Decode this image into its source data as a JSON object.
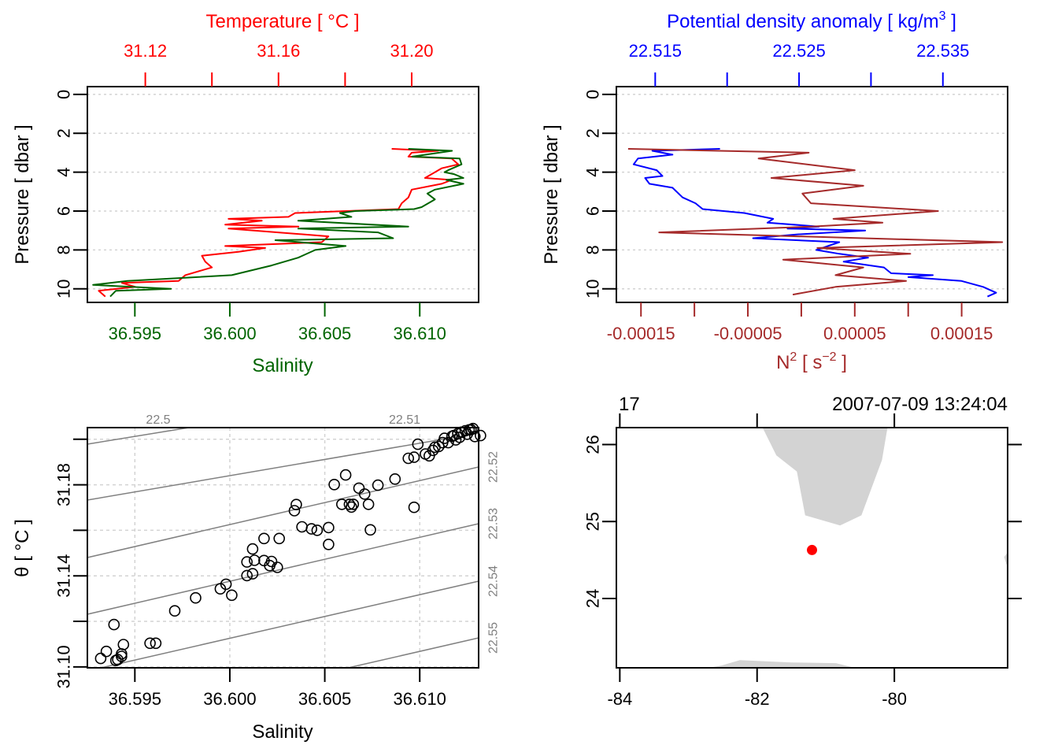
{
  "chart_data": [
    {
      "id": "ts_profile",
      "type": "line",
      "title": "",
      "ylabel": "Pressure [ dbar ]",
      "ylim": [
        10.7,
        -0.4
      ],
      "yticks": [
        0,
        2,
        4,
        6,
        8,
        10
      ],
      "grid": true,
      "bottom_axis": {
        "label": "Salinity",
        "color": "#006400",
        "range": [
          36.5925,
          36.6131
        ],
        "ticks": [
          36.595,
          36.6,
          36.605,
          36.61
        ],
        "tick_labels": [
          "36.595",
          "36.600",
          "36.605",
          "36.610"
        ]
      },
      "top_axis": {
        "label": "Temperature [ °C ]",
        "color": "#ff0000",
        "range": [
          31.1026,
          31.2201
        ],
        "ticks": [
          31.12,
          31.14,
          31.16,
          31.18,
          31.2
        ],
        "tick_labels": [
          "31.12",
          "",
          "31.16",
          "",
          "31.20"
        ]
      },
      "series": [
        {
          "name": "Temperature",
          "axis": "top",
          "color": "#ff0000",
          "points": [
            [
              31.194,
              2.8
            ],
            [
              31.208,
              2.9
            ],
            [
              31.2,
              3.0
            ],
            [
              31.199,
              3.2
            ],
            [
              31.212,
              3.3
            ],
            [
              31.214,
              3.6
            ],
            [
              31.209,
              3.8
            ],
            [
              31.207,
              4.0
            ],
            [
              31.204,
              4.3
            ],
            [
              31.212,
              4.4
            ],
            [
              31.209,
              4.6
            ],
            [
              31.2,
              4.9
            ],
            [
              31.199,
              5.3
            ],
            [
              31.197,
              5.6
            ],
            [
              31.196,
              5.9
            ],
            [
              31.165,
              6.1
            ],
            [
              31.163,
              6.3
            ],
            [
              31.145,
              6.4
            ],
            [
              31.155,
              6.5
            ],
            [
              31.144,
              6.7
            ],
            [
              31.166,
              6.8
            ],
            [
              31.145,
              6.9
            ],
            [
              31.175,
              7.3
            ],
            [
              31.173,
              7.6
            ],
            [
              31.144,
              7.8
            ],
            [
              31.156,
              7.9
            ],
            [
              31.148,
              8.1
            ],
            [
              31.137,
              8.3
            ],
            [
              31.138,
              8.6
            ],
            [
              31.14,
              8.9
            ],
            [
              31.132,
              9.3
            ],
            [
              31.13,
              9.6
            ],
            [
              31.113,
              9.7
            ],
            [
              31.117,
              9.9
            ],
            [
              31.106,
              10.1
            ],
            [
              31.108,
              10.4
            ]
          ]
        },
        {
          "name": "Salinity",
          "axis": "bottom",
          "color": "#006400",
          "points": [
            [
              36.6094,
              2.8
            ],
            [
              36.6117,
              2.9
            ],
            [
              36.6096,
              3.2
            ],
            [
              36.6121,
              3.3
            ],
            [
              36.6122,
              3.6
            ],
            [
              36.6115,
              3.9
            ],
            [
              36.6113,
              4.0
            ],
            [
              36.6118,
              4.1
            ],
            [
              36.6123,
              4.3
            ],
            [
              36.6114,
              4.4
            ],
            [
              36.6123,
              4.6
            ],
            [
              36.6108,
              4.9
            ],
            [
              36.6104,
              5.1
            ],
            [
              36.6108,
              5.4
            ],
            [
              36.6101,
              5.8
            ],
            [
              36.6097,
              5.9
            ],
            [
              36.6066,
              6.0
            ],
            [
              36.6058,
              6.1
            ],
            [
              36.6064,
              6.3
            ],
            [
              36.6036,
              6.5
            ],
            [
              36.6094,
              6.8
            ],
            [
              36.6036,
              6.9
            ],
            [
              36.6078,
              7.1
            ],
            [
              36.6086,
              7.4
            ],
            [
              36.6024,
              7.5
            ],
            [
              36.6061,
              7.8
            ],
            [
              36.6045,
              8.0
            ],
            [
              36.6036,
              8.4
            ],
            [
              36.6022,
              8.8
            ],
            [
              36.6001,
              9.3
            ],
            [
              36.5946,
              9.6
            ],
            [
              36.5928,
              9.8
            ],
            [
              36.5969,
              10.0
            ],
            [
              36.594,
              10.1
            ],
            [
              36.5937,
              10.4
            ]
          ]
        }
      ]
    },
    {
      "id": "density_profile",
      "type": "line",
      "title": "",
      "ylabel": "Pressure [ dbar ]",
      "ylim": [
        10.7,
        -0.4
      ],
      "yticks": [
        0,
        2,
        4,
        6,
        8,
        10
      ],
      "grid": true,
      "bottom_axis": {
        "label": "N² [ s⁻² ]",
        "label_base": "N",
        "label_unit_base": "s",
        "color": "#a52a2a",
        "range": [
          -0.000173,
          0.000193
        ],
        "ticks": [
          -0.00015,
          -0.0001,
          -5e-05,
          0,
          5e-05,
          0.0001,
          0.00015
        ],
        "tick_labels": [
          "-0.00015",
          "",
          "-0.00005",
          "",
          "0.00005",
          "",
          "0.00015"
        ]
      },
      "top_axis": {
        "label": "Potential density anomaly [ kg/m³ ]",
        "color": "#0000ff",
        "range": [
          22.5123,
          22.5395
        ],
        "ticks": [
          22.515,
          22.52,
          22.525,
          22.53,
          22.535
        ],
        "tick_labels": [
          "22.515",
          "",
          "22.525",
          "",
          "22.535"
        ]
      },
      "series": [
        {
          "name": "Potential density anomaly",
          "axis": "top",
          "color": "#0000ff",
          "points": [
            [
              22.5195,
              2.8
            ],
            [
              22.5148,
              2.9
            ],
            [
              22.5162,
              3.1
            ],
            [
              22.5138,
              3.3
            ],
            [
              22.5135,
              3.6
            ],
            [
              22.5151,
              3.9
            ],
            [
              22.5155,
              4.2
            ],
            [
              22.5143,
              4.3
            ],
            [
              22.5146,
              4.6
            ],
            [
              22.5162,
              4.8
            ],
            [
              22.5169,
              5.3
            ],
            [
              22.5178,
              5.6
            ],
            [
              22.5183,
              5.9
            ],
            [
              22.5212,
              6.1
            ],
            [
              22.5232,
              6.4
            ],
            [
              22.5228,
              6.6
            ],
            [
              22.5264,
              6.8
            ],
            [
              22.5242,
              6.9
            ],
            [
              22.5296,
              7.0
            ],
            [
              22.5249,
              7.2
            ],
            [
              22.5218,
              7.4
            ],
            [
              22.5278,
              7.6
            ],
            [
              22.5262,
              8.0
            ],
            [
              22.5278,
              8.2
            ],
            [
              22.5298,
              8.4
            ],
            [
              22.5281,
              8.6
            ],
            [
              22.5309,
              8.9
            ],
            [
              22.5314,
              9.2
            ],
            [
              22.5343,
              9.3
            ],
            [
              22.5326,
              9.4
            ],
            [
              22.5363,
              9.6
            ],
            [
              22.5378,
              9.9
            ],
            [
              22.5387,
              10.2
            ],
            [
              22.5381,
              10.4
            ]
          ]
        },
        {
          "name": "N2",
          "axis": "bottom",
          "color": "#a52a2a",
          "points": [
            [
              -0.000162,
              2.8
            ],
            [
              7e-06,
              3.0
            ],
            [
              -4e-05,
              3.3
            ],
            [
              5e-05,
              3.9
            ],
            [
              -2.8e-05,
              4.3
            ],
            [
              5.8e-05,
              4.7
            ],
            [
              1e-06,
              5.1
            ],
            [
              9e-06,
              5.6
            ],
            [
              0.000128,
              6.0
            ],
            [
              3e-05,
              6.4
            ],
            [
              7.6e-05,
              6.6
            ],
            [
              9e-06,
              6.8
            ],
            [
              -0.000133,
              7.1
            ],
            [
              0.000188,
              7.6
            ],
            [
              1.5e-05,
              7.9
            ],
            [
              0.000102,
              8.2
            ],
            [
              -1.7e-05,
              8.5
            ],
            [
              5.8e-05,
              8.9
            ],
            [
              3.2e-05,
              9.3
            ],
            [
              9.8e-05,
              9.6
            ],
            [
              3.2e-05,
              9.9
            ],
            [
              -8e-06,
              10.3
            ]
          ]
        }
      ]
    },
    {
      "id": "ts_diagram",
      "type": "scatter",
      "title": "",
      "xlabel": "Salinity",
      "ylabel": "θ [ °C ]",
      "xlim": [
        36.5925,
        36.6131
      ],
      "ylim": [
        31.0996,
        31.2051
      ],
      "xticks": [
        36.595,
        36.6,
        36.605,
        36.61
      ],
      "xtick_labels": [
        "36.595",
        "36.600",
        "36.605",
        "36.610"
      ],
      "yticks": [
        31.1,
        31.12,
        31.14,
        31.16,
        31.18,
        31.2
      ],
      "ytick_labels": [
        "31.10",
        "",
        "31.14",
        "",
        "31.18",
        ""
      ],
      "grid": true,
      "isopycnals": {
        "color": "#808080",
        "top_labels": [
          "22.5",
          "22.51"
        ],
        "right_labels": [
          "22.52",
          "22.53",
          "22.54",
          "22.55"
        ]
      },
      "points": [
        [
          36.5932,
          31.1037
        ],
        [
          36.5935,
          31.1068
        ],
        [
          36.5939,
          31.1186
        ],
        [
          36.594,
          31.1028
        ],
        [
          36.5941,
          31.1032
        ],
        [
          36.5943,
          31.1046
        ],
        [
          36.5943,
          31.1057
        ],
        [
          36.5944,
          31.1098
        ],
        [
          36.5958,
          31.1104
        ],
        [
          36.5961,
          31.1104
        ],
        [
          36.5971,
          31.1246
        ],
        [
          36.5982,
          31.1303
        ],
        [
          36.5995,
          31.1343
        ],
        [
          36.5998,
          31.1363
        ],
        [
          36.6001,
          31.1315
        ],
        [
          36.6009,
          31.1401
        ],
        [
          36.6009,
          31.1461
        ],
        [
          36.6012,
          31.1409
        ],
        [
          36.6012,
          31.1518
        ],
        [
          36.6013,
          31.1468
        ],
        [
          36.6018,
          31.1564
        ],
        [
          36.6018,
          31.1467
        ],
        [
          36.6021,
          31.1445
        ],
        [
          36.6022,
          31.1463
        ],
        [
          36.6025,
          31.1437
        ],
        [
          36.6026,
          31.1564
        ],
        [
          36.6034,
          31.1686
        ],
        [
          36.6035,
          31.1713
        ],
        [
          36.6038,
          31.1615
        ],
        [
          36.6043,
          31.1606
        ],
        [
          36.6046,
          31.16
        ],
        [
          36.6052,
          31.1612
        ],
        [
          36.6052,
          31.1538
        ],
        [
          36.6055,
          31.1801
        ],
        [
          36.6061,
          31.1843
        ],
        [
          36.6059,
          31.1714
        ],
        [
          36.6063,
          31.1714
        ],
        [
          36.6064,
          31.1702
        ],
        [
          36.6065,
          31.1714
        ],
        [
          36.6068,
          31.1785
        ],
        [
          36.6071,
          31.1759
        ],
        [
          36.6073,
          31.1714
        ],
        [
          36.6074,
          31.1602
        ],
        [
          36.6078,
          31.1798
        ],
        [
          36.6087,
          31.1825
        ],
        [
          36.6094,
          31.1916
        ],
        [
          36.6097,
          31.1921
        ],
        [
          36.6097,
          31.1701
        ],
        [
          36.6099,
          31.1978
        ],
        [
          36.6103,
          31.1935
        ],
        [
          36.6105,
          31.1927
        ],
        [
          36.6107,
          31.1951
        ],
        [
          36.6108,
          31.1965
        ],
        [
          36.611,
          31.1968
        ],
        [
          36.6112,
          31.1985
        ],
        [
          36.6113,
          31.2004
        ],
        [
          36.6115,
          31.1985
        ],
        [
          36.6117,
          31.2013
        ],
        [
          36.6118,
          31.2016
        ],
        [
          36.6119,
          31.1997
        ],
        [
          36.612,
          31.2024
        ],
        [
          36.6122,
          31.2031
        ],
        [
          36.6124,
          31.2037
        ],
        [
          36.6125,
          31.2022
        ],
        [
          36.6127,
          31.2042
        ],
        [
          36.6128,
          31.2047
        ],
        [
          36.6129,
          31.2012
        ],
        [
          36.6132,
          31.2016
        ],
        [
          36.6126,
          31.2041
        ],
        [
          36.6121,
          31.2008
        ]
      ]
    },
    {
      "id": "station_map",
      "type": "map",
      "title": "",
      "top_left_label": "17",
      "top_right_label": "2007-07-09 13:24:04",
      "xlim": [
        -84.05,
        -78.35
      ],
      "ylim": [
        23.1,
        26.22
      ],
      "xticks": [
        -84,
        -82,
        -80
      ],
      "xtick_labels": [
        "-84",
        "-82",
        "-80"
      ],
      "yticks": [
        24,
        25,
        26
      ],
      "ytick_labels": [
        "24",
        "25",
        "26"
      ],
      "land_color": "#d3d3d3",
      "station": {
        "lon": -81.2,
        "lat": 24.63,
        "color": "#ff0000"
      },
      "land": [
        [
          [
            -81.92,
            26.22
          ],
          [
            -81.72,
            25.86
          ],
          [
            -81.42,
            25.65
          ],
          [
            -81.3,
            25.08
          ],
          [
            -80.79,
            24.95
          ],
          [
            -80.48,
            25.08
          ],
          [
            -80.18,
            25.8
          ],
          [
            -80.1,
            26.22
          ]
        ],
        [
          [
            -82.7,
            23.1
          ],
          [
            -82.52,
            23.13
          ],
          [
            -82.25,
            23.2
          ],
          [
            -81.5,
            23.17
          ],
          [
            -80.85,
            23.16
          ],
          [
            -80.58,
            23.1
          ]
        ],
        [
          [
            -78.35,
            24.6
          ],
          [
            -78.4,
            24.54
          ],
          [
            -78.37,
            24.45
          ],
          [
            -78.35,
            24.42
          ]
        ]
      ]
    }
  ]
}
